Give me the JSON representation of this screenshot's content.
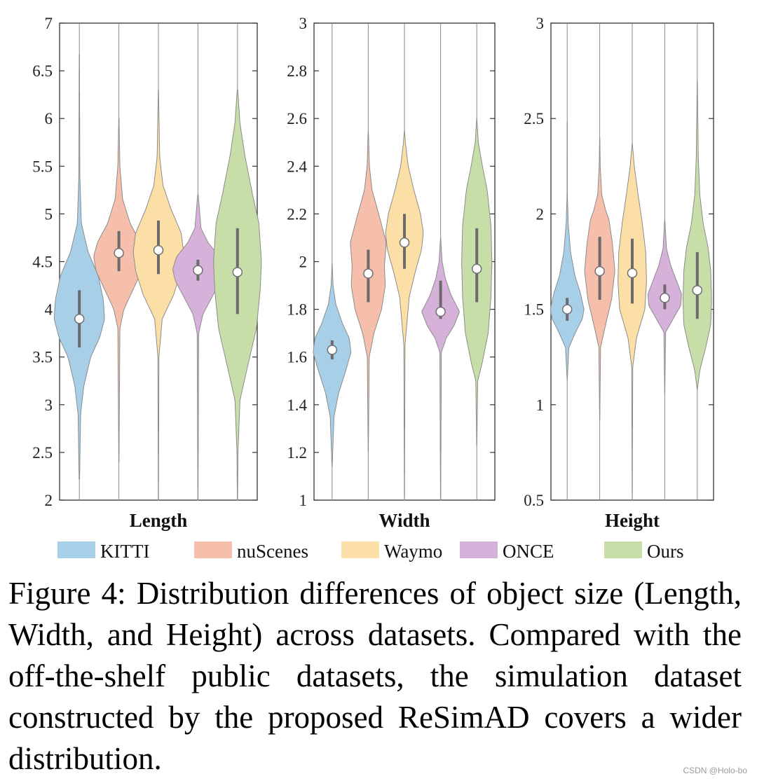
{
  "chart_data": [
    {
      "type": "violin",
      "xlabel": "Length",
      "ylim": [
        2,
        7
      ],
      "yticks": [
        "2",
        "2.5",
        "3",
        "3.5",
        "4",
        "4.5",
        "5",
        "5.5",
        "6",
        "6.5",
        "7"
      ],
      "series": [
        {
          "name": "KITTI",
          "median": 3.9,
          "q1": 3.6,
          "q3": 4.2,
          "min": 2.22,
          "max": 6.67,
          "profile": [
            [
              2.22,
              0.01
            ],
            [
              2.9,
              0.05
            ],
            [
              3.2,
              0.18
            ],
            [
              3.5,
              0.45
            ],
            [
              3.7,
              0.8
            ],
            [
              3.9,
              1.0
            ],
            [
              4.1,
              0.95
            ],
            [
              4.35,
              0.75
            ],
            [
              4.6,
              0.35
            ],
            [
              4.9,
              0.08
            ],
            [
              5.4,
              0.02
            ],
            [
              6.67,
              0.005
            ]
          ]
        },
        {
          "name": "nuScenes",
          "median": 4.59,
          "q1": 4.4,
          "q3": 4.82,
          "min": 2.4,
          "max": 6.0,
          "profile": [
            [
              2.4,
              0.005
            ],
            [
              3.8,
              0.04
            ],
            [
              4.0,
              0.2
            ],
            [
              4.2,
              0.55
            ],
            [
              4.4,
              0.9
            ],
            [
              4.55,
              1.0
            ],
            [
              4.7,
              0.85
            ],
            [
              4.9,
              0.45
            ],
            [
              5.15,
              0.15
            ],
            [
              5.5,
              0.04
            ],
            [
              6.0,
              0.005
            ]
          ]
        },
        {
          "name": "Waymo",
          "median": 4.62,
          "q1": 4.37,
          "q3": 4.93,
          "min": 2.0,
          "max": 6.3,
          "profile": [
            [
              2.0,
              0.005
            ],
            [
              3.5,
              0.02
            ],
            [
              3.9,
              0.15
            ],
            [
              4.15,
              0.6
            ],
            [
              4.4,
              0.9
            ],
            [
              4.6,
              1.0
            ],
            [
              4.8,
              0.9
            ],
            [
              5.05,
              0.5
            ],
            [
              5.3,
              0.18
            ],
            [
              5.6,
              0.05
            ],
            [
              6.3,
              0.005
            ]
          ]
        },
        {
          "name": "ONCE",
          "median": 4.41,
          "q1": 4.3,
          "q3": 4.52,
          "min": 2.0,
          "max": 5.2,
          "profile": [
            [
              2.0,
              0.005
            ],
            [
              3.75,
              0.03
            ],
            [
              3.95,
              0.2
            ],
            [
              4.15,
              0.6
            ],
            [
              4.3,
              0.9
            ],
            [
              4.42,
              1.0
            ],
            [
              4.55,
              0.85
            ],
            [
              4.7,
              0.4
            ],
            [
              4.85,
              0.12
            ],
            [
              5.2,
              0.01
            ]
          ]
        },
        {
          "name": "Ours",
          "median": 4.39,
          "q1": 3.95,
          "q3": 4.85,
          "min": 2.0,
          "max": 6.3,
          "profile": [
            [
              2.0,
              0.005
            ],
            [
              2.5,
              0.02
            ],
            [
              3.05,
              0.1
            ],
            [
              3.4,
              0.4
            ],
            [
              3.8,
              0.75
            ],
            [
              4.2,
              0.9
            ],
            [
              4.5,
              0.95
            ],
            [
              4.9,
              0.85
            ],
            [
              5.2,
              0.6
            ],
            [
              5.6,
              0.3
            ],
            [
              5.95,
              0.1
            ],
            [
              6.3,
              0.01
            ]
          ]
        }
      ]
    },
    {
      "type": "violin",
      "xlabel": "Width",
      "ylim": [
        1,
        3
      ],
      "yticks": [
        "1",
        "1.2",
        "1.4",
        "1.6",
        "1.8",
        "2",
        "2.2",
        "2.4",
        "2.6",
        "2.8",
        "3"
      ],
      "series": [
        {
          "name": "KITTI",
          "median": 1.63,
          "q1": 1.59,
          "q3": 1.67,
          "min": 1.14,
          "max": 1.99,
          "profile": [
            [
              1.14,
              0.005
            ],
            [
              1.35,
              0.1
            ],
            [
              1.45,
              0.35
            ],
            [
              1.55,
              0.75
            ],
            [
              1.62,
              1.0
            ],
            [
              1.68,
              0.9
            ],
            [
              1.74,
              0.55
            ],
            [
              1.82,
              0.2
            ],
            [
              1.9,
              0.05
            ],
            [
              1.99,
              0.005
            ]
          ]
        },
        {
          "name": "nuScenes",
          "median": 1.95,
          "q1": 1.83,
          "q3": 2.05,
          "min": 1.2,
          "max": 2.55,
          "profile": [
            [
              1.2,
              0.005
            ],
            [
              1.6,
              0.05
            ],
            [
              1.7,
              0.3
            ],
            [
              1.8,
              0.7
            ],
            [
              1.9,
              0.9
            ],
            [
              1.98,
              0.85
            ],
            [
              2.08,
              0.95
            ],
            [
              2.2,
              0.55
            ],
            [
              2.3,
              0.2
            ],
            [
              2.4,
              0.06
            ],
            [
              2.55,
              0.005
            ]
          ]
        },
        {
          "name": "Waymo",
          "median": 2.08,
          "q1": 1.97,
          "q3": 2.2,
          "min": 1.0,
          "max": 2.55,
          "profile": [
            [
              1.0,
              0.005
            ],
            [
              1.65,
              0.03
            ],
            [
              1.85,
              0.25
            ],
            [
              1.95,
              0.55
            ],
            [
              2.05,
              0.9
            ],
            [
              2.12,
              1.0
            ],
            [
              2.2,
              0.85
            ],
            [
              2.3,
              0.5
            ],
            [
              2.4,
              0.2
            ],
            [
              2.5,
              0.05
            ],
            [
              2.55,
              0.005
            ]
          ]
        },
        {
          "name": "ONCE",
          "median": 1.79,
          "q1": 1.76,
          "q3": 1.92,
          "min": 1.0,
          "max": 2.1,
          "profile": [
            [
              1.0,
              0.005
            ],
            [
              1.62,
              0.04
            ],
            [
              1.68,
              0.3
            ],
            [
              1.73,
              0.7
            ],
            [
              1.79,
              1.0
            ],
            [
              1.86,
              0.55
            ],
            [
              1.93,
              0.25
            ],
            [
              2.0,
              0.08
            ],
            [
              2.1,
              0.005
            ]
          ]
        },
        {
          "name": "Ours",
          "median": 1.97,
          "q1": 1.83,
          "q3": 2.14,
          "min": 1.23,
          "max": 2.6,
          "profile": [
            [
              1.23,
              0.005
            ],
            [
              1.5,
              0.05
            ],
            [
              1.58,
              0.3
            ],
            [
              1.7,
              0.6
            ],
            [
              1.85,
              0.75
            ],
            [
              2.0,
              0.8
            ],
            [
              2.15,
              0.75
            ],
            [
              2.3,
              0.55
            ],
            [
              2.4,
              0.3
            ],
            [
              2.5,
              0.08
            ],
            [
              2.6,
              0.005
            ]
          ]
        }
      ]
    },
    {
      "type": "violin",
      "xlabel": "Height",
      "ylim": [
        0.5,
        3
      ],
      "yticks": [
        "0.5",
        "1",
        "1.5",
        "2",
        "2.5",
        "3"
      ],
      "series": [
        {
          "name": "KITTI",
          "median": 1.5,
          "q1": 1.44,
          "q3": 1.56,
          "min": 1.13,
          "max": 2.48,
          "profile": [
            [
              1.13,
              0.005
            ],
            [
              1.3,
              0.1
            ],
            [
              1.38,
              0.5
            ],
            [
              1.45,
              0.9
            ],
            [
              1.5,
              1.0
            ],
            [
              1.58,
              0.8
            ],
            [
              1.68,
              0.45
            ],
            [
              1.8,
              0.2
            ],
            [
              1.95,
              0.06
            ],
            [
              2.1,
              0.01
            ],
            [
              2.48,
              0.003
            ]
          ]
        },
        {
          "name": "nuScenes",
          "median": 1.7,
          "q1": 1.55,
          "q3": 1.88,
          "min": 0.92,
          "max": 2.4,
          "profile": [
            [
              0.92,
              0.005
            ],
            [
              1.3,
              0.05
            ],
            [
              1.4,
              0.3
            ],
            [
              1.55,
              0.7
            ],
            [
              1.7,
              0.9
            ],
            [
              1.85,
              0.75
            ],
            [
              1.97,
              0.55
            ],
            [
              2.02,
              0.35
            ],
            [
              2.1,
              0.12
            ],
            [
              2.25,
              0.03
            ],
            [
              2.4,
              0.005
            ]
          ]
        },
        {
          "name": "Waymo",
          "median": 1.69,
          "q1": 1.53,
          "q3": 1.87,
          "min": 0.5,
          "max": 2.37,
          "profile": [
            [
              0.5,
              0.005
            ],
            [
              1.2,
              0.03
            ],
            [
              1.35,
              0.25
            ],
            [
              1.5,
              0.75
            ],
            [
              1.65,
              0.85
            ],
            [
              1.8,
              0.8
            ],
            [
              1.95,
              0.6
            ],
            [
              2.1,
              0.35
            ],
            [
              2.25,
              0.12
            ],
            [
              2.37,
              0.005
            ]
          ]
        },
        {
          "name": "ONCE",
          "median": 1.56,
          "q1": 1.5,
          "q3": 1.63,
          "min": 1.06,
          "max": 1.97,
          "profile": [
            [
              1.06,
              0.005
            ],
            [
              1.38,
              0.05
            ],
            [
              1.45,
              0.5
            ],
            [
              1.52,
              0.95
            ],
            [
              1.58,
              1.0
            ],
            [
              1.65,
              0.7
            ],
            [
              1.73,
              0.35
            ],
            [
              1.82,
              0.1
            ],
            [
              1.97,
              0.005
            ]
          ]
        },
        {
          "name": "Ours",
          "median": 1.6,
          "q1": 1.45,
          "q3": 1.8,
          "min": 1.08,
          "max": 2.7,
          "profile": [
            [
              1.08,
              0.005
            ],
            [
              1.18,
              0.15
            ],
            [
              1.3,
              0.5
            ],
            [
              1.42,
              0.8
            ],
            [
              1.55,
              0.85
            ],
            [
              1.7,
              0.8
            ],
            [
              1.82,
              0.65
            ],
            [
              1.95,
              0.35
            ],
            [
              2.1,
              0.15
            ],
            [
              2.3,
              0.06
            ],
            [
              2.7,
              0.005
            ]
          ]
        }
      ]
    }
  ],
  "legend": [
    {
      "label": "KITTI",
      "color": "#a8cfe8"
    },
    {
      "label": "nuScenes",
      "color": "#f5bfab"
    },
    {
      "label": "Waymo",
      "color": "#fbdfa6"
    },
    {
      "label": "ONCE",
      "color": "#d6b2da"
    },
    {
      "label": "Ours",
      "color": "#c7dea9"
    }
  ],
  "caption": "Figure 4: Distribution differences of object size (Length, Width, and Height) across datasets. Compared with the off-the-shelf public datasets, the simulation dataset constructed by the proposed ReSimAD covers a wider distribution.",
  "watermark": "CSDN @Holo-bo"
}
